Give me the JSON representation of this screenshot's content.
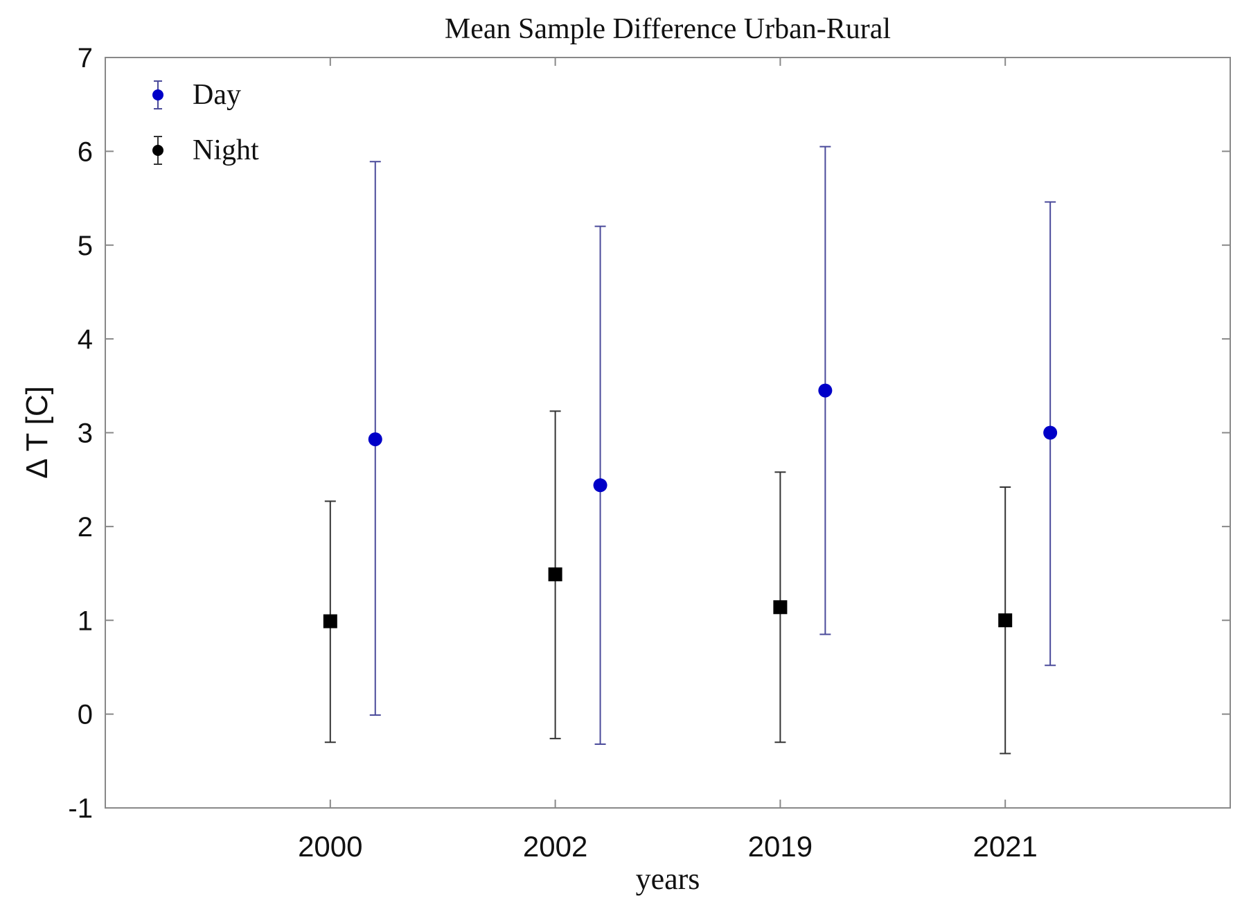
{
  "chart_data": {
    "type": "scatter",
    "title": "Mean Sample Difference Urban-Rural",
    "xlabel": "years",
    "ylabel": "Δ T [C]",
    "categories": [
      "2000",
      "2002",
      "2019",
      "2021"
    ],
    "ylim": [
      -1,
      7
    ],
    "yticks": [
      "-1",
      "0",
      "1",
      "2",
      "3",
      "4",
      "5",
      "6",
      "7"
    ],
    "grid": false,
    "legend_position": "top-left",
    "series": [
      {
        "name": "Day",
        "color": "#0000c8",
        "errorbar_color": "#4a4a9a",
        "marker": "circle",
        "offset": 0.2,
        "values": [
          2.93,
          2.44,
          3.45,
          3.0
        ],
        "upper": [
          5.89,
          5.2,
          6.05,
          5.46
        ],
        "lower": [
          -0.01,
          -0.32,
          0.85,
          0.52
        ]
      },
      {
        "name": "Night",
        "color": "#000000",
        "errorbar_color": "#333333",
        "marker": "square",
        "offset": 0,
        "values": [
          0.99,
          1.49,
          1.14,
          1.0
        ],
        "upper": [
          2.27,
          3.23,
          2.58,
          2.42
        ],
        "lower": [
          -0.3,
          -0.26,
          -0.3,
          -0.42
        ]
      }
    ]
  }
}
